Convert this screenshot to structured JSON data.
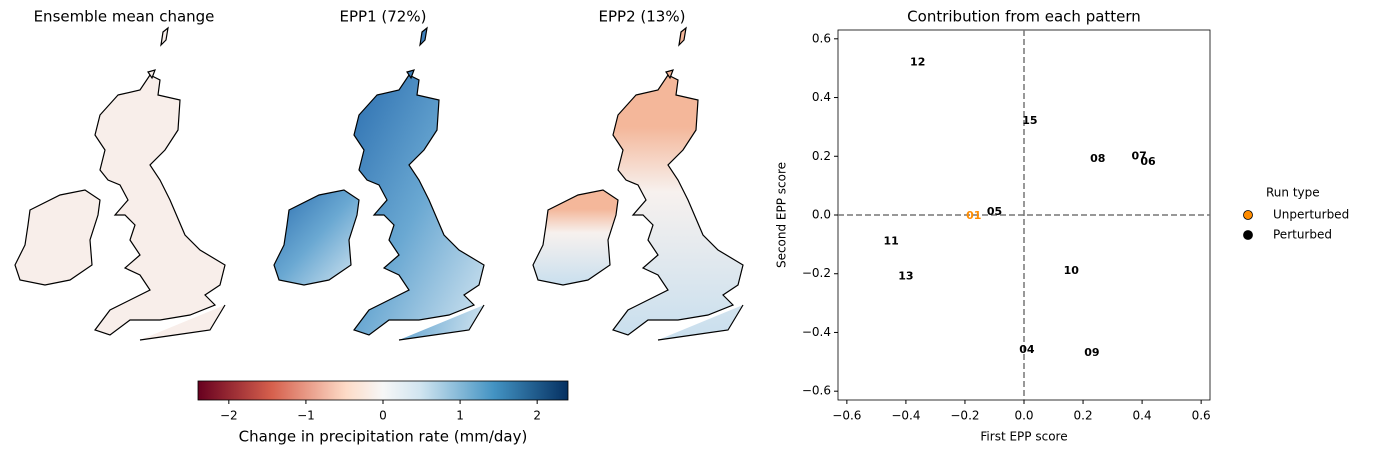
{
  "maps": [
    {
      "title": "Ensemble mean change"
    },
    {
      "title": "EPP1 (72%)"
    },
    {
      "title": "EPP2 (13%)"
    }
  ],
  "colorbar": {
    "label": "Change in precipitation rate (mm/day)",
    "lim": [
      -2.4,
      2.4
    ],
    "ticks": [
      {
        "value": -2,
        "label": "−2"
      },
      {
        "value": -1,
        "label": "−1"
      },
      0,
      1,
      2
    ]
  },
  "chart_data": {
    "type": "scatter",
    "title": "Contribution from each pattern",
    "xlabel": "First EPP score",
    "ylabel": "Second EPP score",
    "xlim": [
      -0.63,
      0.63
    ],
    "ylim": [
      -0.63,
      0.63
    ],
    "xticks": [
      {
        "value": -0.6,
        "label": "−0.6"
      },
      {
        "value": -0.4,
        "label": "−0.4"
      },
      {
        "value": -0.2,
        "label": "−0.2"
      },
      {
        "value": 0,
        "label": "0.0"
      },
      0.2,
      0.4,
      0.6
    ],
    "yticks": [
      {
        "value": -0.6,
        "label": "−0.6"
      },
      {
        "value": -0.4,
        "label": "−0.4"
      },
      {
        "value": -0.2,
        "label": "−0.2"
      },
      {
        "value": 0,
        "label": "0.0"
      },
      0.2,
      0.4,
      0.6
    ],
    "legend_title": "Run type",
    "series": [
      {
        "name": "Unperturbed",
        "color": "#ff8c00",
        "labels": [
          "01"
        ],
        "x": [
          -0.17
        ],
        "y": [
          -0.003
        ]
      },
      {
        "name": "Perturbed",
        "color": "#000000",
        "labels": [
          "12",
          "15",
          "07",
          "06",
          "08",
          "05",
          "11",
          "10",
          "13",
          "04",
          "09"
        ],
        "x": [
          -0.36,
          0.02,
          0.39,
          0.42,
          0.25,
          -0.1,
          -0.45,
          0.16,
          -0.4,
          0.01,
          0.23
        ],
        "y": [
          0.52,
          0.32,
          0.2,
          0.18,
          0.19,
          0.01,
          -0.09,
          -0.19,
          -0.21,
          -0.46,
          -0.47
        ]
      }
    ]
  }
}
